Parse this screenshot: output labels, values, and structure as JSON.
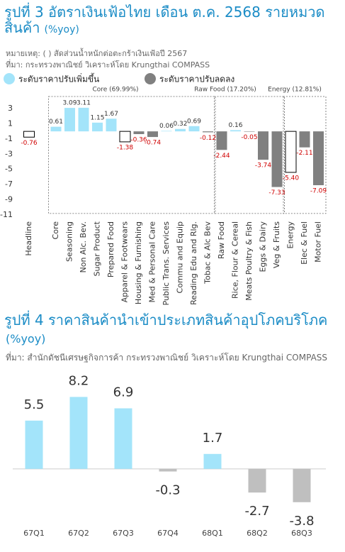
{
  "chart_data": [
    {
      "type": "bar",
      "title": "รูปที่ 3 อัตราเงินเฟ้อไทย เดือน ต.ค. 2568 รายหมวดสินค้า",
      "subtitle": "(%yoy)",
      "note": "หมายเหตุ: ( ) สัดส่วนน้ำหนักต่อตะกร้าเงินเฟ้อปี 2567",
      "source": "ที่มา: กระทรวงพาณิชย์ วิเคราะห์โดย Krungthai COMPASS",
      "legend": [
        {
          "name": "ระดับราคาปรับเพิ่มขึ้น",
          "color": "#a3e4fa"
        },
        {
          "name": "ระดับราคาปรับลดลง",
          "color": "#808080"
        }
      ],
      "groups": [
        {
          "label": "Core (69.99%)",
          "span": [
            1,
            12
          ]
        },
        {
          "label": "Raw Food (17.20%)",
          "span": [
            13,
            17
          ]
        },
        {
          "label": "Energy (12.81%)",
          "span": [
            18,
            20
          ]
        }
      ],
      "categories": [
        "Headline",
        "Core",
        "Seasoning",
        "Non Alc. Bev.",
        "Sugar Product",
        "Prepared Food",
        "Apparel & Footwears",
        "Housing & Furnishing",
        "Med & Personal Care",
        "Public Trans. Services",
        "Commu and Equip",
        "Reading Edu and Rlg.",
        "Tobac & Alc Bev",
        "Raw Food",
        "Rice, Flour & Cereal",
        "Meats Poultry & Fish",
        "Eggs & Dairy",
        "Veg & Fruits",
        "Energy",
        "Elec & Fuel",
        "Motor Fuel"
      ],
      "values": [
        -0.76,
        0.61,
        3.09,
        3.11,
        1.15,
        1.67,
        -1.38,
        -0.36,
        -0.74,
        0.06,
        0.32,
        0.69,
        -0.12,
        -2.44,
        0.16,
        -0.05,
        -3.74,
        -7.33,
        -5.4,
        -2.11,
        -7.09
      ],
      "value_labels": [
        "-0.76",
        "0.61",
        "3.09",
        "3.11",
        "1.15",
        "1.67",
        "-1.38",
        "-0.36",
        "-0.74",
        "0.06",
        "0.32",
        "0.69",
        "-0.12",
        "-2.44",
        "0.16",
        "-0.05",
        "-3.74",
        "-7.33",
        "-5.40",
        "-2.11",
        "-7.09"
      ],
      "colors": [
        "#ffffff",
        "#a3e4fa",
        "#a3e4fa",
        "#a3e4fa",
        "#a3e4fa",
        "#a3e4fa",
        "#ffffff",
        "#808080",
        "#808080",
        "#a3e4fa",
        "#a3e4fa",
        "#a3e4fa",
        "#808080",
        "#808080",
        "#a3e4fa",
        "#808080",
        "#808080",
        "#808080",
        "#ffffff",
        "#808080",
        "#808080"
      ],
      "ylim": [
        -11,
        4.5
      ],
      "yticks": [
        3,
        1,
        -1,
        -3,
        -5,
        -7,
        -9,
        -11
      ],
      "grid": false
    },
    {
      "type": "bar",
      "title": "รูปที่ 4 ราคาสินค้านำเข้าประเภทสินค้าอุปโภคบริโภค",
      "subtitle": "(%yoy)",
      "source": "ที่มา: สำนักดัชนีเศรษฐกิจการค้า กระทรวงพาณิชย์ วิเคราะห์โดย Krungthai COMPASS",
      "categories": [
        "67Q1",
        "67Q2",
        "67Q3",
        "67Q4",
        "68Q1",
        "68Q2",
        "68Q3"
      ],
      "values": [
        5.5,
        8.2,
        6.9,
        -0.3,
        1.7,
        -2.7,
        -3.8
      ],
      "colors": [
        "#a3e4fa",
        "#a3e4fa",
        "#a3e4fa",
        "#bfbfbf",
        "#a3e4fa",
        "#bfbfbf",
        "#bfbfbf"
      ],
      "ylim": [
        -6,
        10.5
      ],
      "grid": false
    }
  ]
}
